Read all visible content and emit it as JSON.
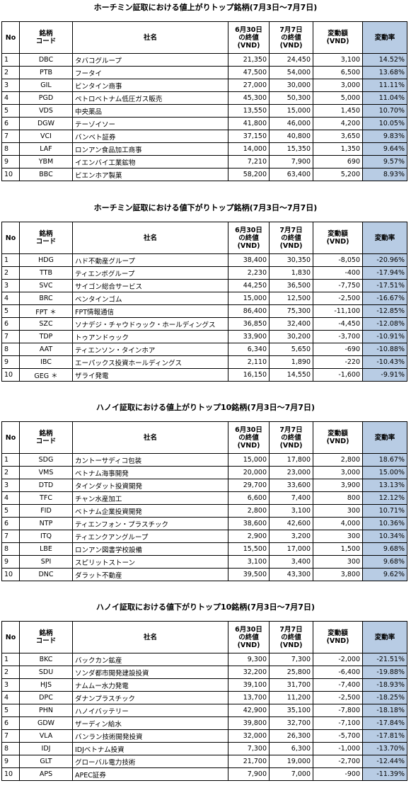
{
  "tables": [
    {
      "title": "ホーチミン証取における値上がりトップ銘柄(7月3日～7月7日)",
      "headers": [
        "No",
        "銘柄\nコード",
        "社名",
        "6月30日\nの終値\n(VND)",
        "7月7日\nの終値\n(VND)",
        "変動額\n(VND)",
        "変動率"
      ],
      "rows": [
        [
          "1",
          "DBC",
          "タバコグループ",
          "21,350",
          "24,450",
          "3,100",
          "14.52%"
        ],
        [
          "2",
          "PTB",
          "フータイ",
          "47,500",
          "54,000",
          "6,500",
          "13.68%"
        ],
        [
          "3",
          "GIL",
          "ビンタイン商事",
          "27,000",
          "30,000",
          "3,000",
          "11.11%"
        ],
        [
          "4",
          "PGD",
          "ペトロベトナム低圧ガス販売",
          "45,300",
          "50,300",
          "5,000",
          "11.04%"
        ],
        [
          "5",
          "VDS",
          "中央薬品",
          "13,550",
          "15,000",
          "1,450",
          "10.70%"
        ],
        [
          "6",
          "DGW",
          "テーゾイソー",
          "41,800",
          "46,000",
          "4,200",
          "10.05%"
        ],
        [
          "7",
          "VCI",
          "バンベト証券",
          "37,150",
          "40,800",
          "3,650",
          "9.83%"
        ],
        [
          "8",
          "LAF",
          "ロンアン食品加工商事",
          "14,000",
          "15,350",
          "1,350",
          "9.64%"
        ],
        [
          "9",
          "YBM",
          "イエンバイ工業鉱物",
          "7,210",
          "7,900",
          "690",
          "9.57%"
        ],
        [
          "10",
          "BBC",
          "ビエンホア製菓",
          "58,200",
          "63,400",
          "5,200",
          "8.93%"
        ]
      ]
    },
    {
      "title": "ホーチミン証取における値下がりトップ銘柄(7月3日～7月7日)",
      "headers": [
        "No",
        "銘柄\nコード",
        "社名",
        "6月30日\nの終値\n(VND)",
        "7月7日\nの終値\n(VND)",
        "変動額\n(VND)",
        "変動率"
      ],
      "rows": [
        [
          "1",
          "HDG",
          "ハド不動産グループ",
          "38,400",
          "30,350",
          "-8,050",
          "-20.96%"
        ],
        [
          "2",
          "TTB",
          "ティエンボグループ",
          "2,230",
          "1,830",
          "-400",
          "-17.94%"
        ],
        [
          "3",
          "SVC",
          "サイゴン総合サービス",
          "44,250",
          "36,500",
          "-7,750",
          "-17.51%"
        ],
        [
          "4",
          "BRC",
          "ベンタインゴム",
          "15,000",
          "12,500",
          "-2,500",
          "-16.67%"
        ],
        [
          "5",
          "FPT ＊",
          "FPT情報通信",
          "86,400",
          "75,300",
          "-11,100",
          "-12.85%"
        ],
        [
          "6",
          "SZC",
          "ソナデジ・チャウドゥック・ホールディングス",
          "36,850",
          "32,400",
          "-4,450",
          "-12.08%"
        ],
        [
          "7",
          "TDP",
          "トゥアンドゥック",
          "33,900",
          "30,200",
          "-3,700",
          "-10.91%"
        ],
        [
          "8",
          "AAT",
          "ティエンソン・タインホア",
          "6,340",
          "5,650",
          "-690",
          "-10.88%"
        ],
        [
          "9",
          "IBC",
          "エーパックス投資ホールディングス",
          "2,110",
          "1,890",
          "-220",
          "-10.43%"
        ],
        [
          "10",
          "GEG ＊",
          "ザライ発電",
          "16,150",
          "14,550",
          "-1,600",
          "-9.91%"
        ]
      ]
    },
    {
      "title": "ハノイ証取における値上がりトップ10銘柄(7月3日～7月7日)",
      "headers": [
        "No",
        "銘柄\nコード",
        "社名",
        "6月30日\nの終値\n(VND)",
        "7月7日\nの終値\n(VND)",
        "変動額\n(VND)",
        "変動率"
      ],
      "rows": [
        [
          "1",
          "SDG",
          "カントーサディコ包装",
          "15,000",
          "17,800",
          "2,800",
          "18.67%"
        ],
        [
          "2",
          "VMS",
          "ベトナム海事開発",
          "20,000",
          "23,000",
          "3,000",
          "15.00%"
        ],
        [
          "3",
          "DTD",
          "タインダット投資開発",
          "29,700",
          "33,600",
          "3,900",
          "13.13%"
        ],
        [
          "4",
          "TFC",
          "チャン水産加工",
          "6,600",
          "7,400",
          "800",
          "12.12%"
        ],
        [
          "5",
          "FID",
          "ベトナム企業投資開発",
          "2,800",
          "3,100",
          "300",
          "10.71%"
        ],
        [
          "6",
          "NTP",
          "ティエンフォン・プラスチック",
          "38,600",
          "42,600",
          "4,000",
          "10.36%"
        ],
        [
          "7",
          "ITQ",
          "ティエンクアングループ",
          "2,900",
          "3,200",
          "300",
          "10.34%"
        ],
        [
          "8",
          "LBE",
          "ロンアン図書学校設備",
          "15,500",
          "17,000",
          "1,500",
          "9.68%"
        ],
        [
          "9",
          "SPI",
          "スピリットストーン",
          "3,100",
          "3,400",
          "300",
          "9.68%"
        ],
        [
          "10",
          "DNC",
          "ダラット不動産",
          "39,500",
          "43,300",
          "3,800",
          "9.62%"
        ]
      ]
    },
    {
      "title": "ハノイ証取における値下がりトップ10銘柄(7月3日～7月7日)",
      "headers": [
        "No",
        "銘柄\nコード",
        "社名",
        "6月30日\nの終値\n(VND)",
        "7月7日\nの終値\n(VND)",
        "変動額\n(VND)",
        "変動率"
      ],
      "rows": [
        [
          "1",
          "BKC",
          "バックカン鉱産",
          "9,300",
          "7,300",
          "-2,000",
          "-21.51%"
        ],
        [
          "2",
          "SDU",
          "ソンダ都市開発建設投資",
          "32,200",
          "25,800",
          "-6,400",
          "-19.88%"
        ],
        [
          "3",
          "HJS",
          "ナムムー水力発電",
          "39,100",
          "31,700",
          "-7,400",
          "-18.93%"
        ],
        [
          "4",
          "DPC",
          "ダナンプラスチック",
          "13,700",
          "11,200",
          "-2,500",
          "-18.25%"
        ],
        [
          "5",
          "PHN",
          "ハノイバッテリー",
          "42,900",
          "35,100",
          "-7,800",
          "-18.18%"
        ],
        [
          "6",
          "GDW",
          "ザーディン給水",
          "39,800",
          "32,700",
          "-7,100",
          "-17.84%"
        ],
        [
          "7",
          "VLA",
          "バンラン技術開発投資",
          "32,000",
          "26,300",
          "-5,700",
          "-17.81%"
        ],
        [
          "8",
          "IDJ",
          "IDJベトナム投資",
          "7,300",
          "6,300",
          "-1,000",
          "-13.70%"
        ],
        [
          "9",
          "GLT",
          "グローバル電力技術",
          "21,700",
          "19,000",
          "-2,700",
          "-12.44%"
        ],
        [
          "10",
          "APS",
          "APEC証券",
          "7,900",
          "7,000",
          "-900",
          "-11.39%"
        ]
      ]
    }
  ]
}
